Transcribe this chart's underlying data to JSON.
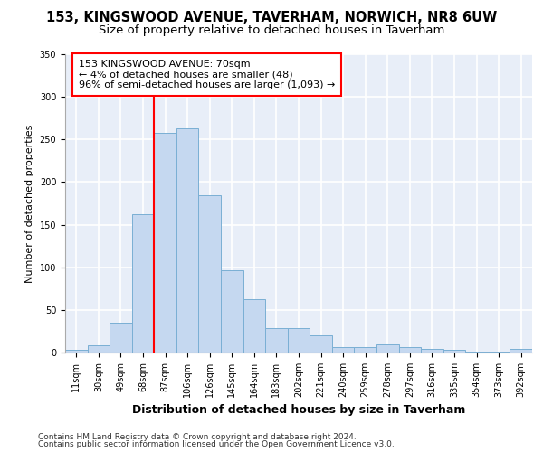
{
  "title1": "153, KINGSWOOD AVENUE, TAVERHAM, NORWICH, NR8 6UW",
  "title2": "Size of property relative to detached houses in Taverham",
  "xlabel": "Distribution of detached houses by size in Taverham",
  "ylabel": "Number of detached properties",
  "bin_labels": [
    "11sqm",
    "30sqm",
    "49sqm",
    "68sqm",
    "87sqm",
    "106sqm",
    "126sqm",
    "145sqm",
    "164sqm",
    "183sqm",
    "202sqm",
    "221sqm",
    "240sqm",
    "259sqm",
    "278sqm",
    "297sqm",
    "316sqm",
    "335sqm",
    "354sqm",
    "373sqm",
    "392sqm"
  ],
  "bar_values": [
    3,
    8,
    35,
    162,
    258,
    263,
    185,
    96,
    63,
    29,
    29,
    20,
    6,
    6,
    10,
    6,
    4,
    3,
    1,
    1,
    4
  ],
  "bar_color": "#c5d8f0",
  "bar_edge_color": "#7aafd4",
  "red_line_x": 3.5,
  "annotation_title": "153 KINGSWOOD AVENUE: 70sqm",
  "annotation_line1": "← 4% of detached houses are smaller (48)",
  "annotation_line2": "96% of semi-detached houses are larger (1,093) →",
  "ylim": [
    0,
    350
  ],
  "yticks": [
    0,
    50,
    100,
    150,
    200,
    250,
    300,
    350
  ],
  "footnote1": "Contains HM Land Registry data © Crown copyright and database right 2024.",
  "footnote2": "Contains public sector information licensed under the Open Government Licence v3.0.",
  "bg_color": "#e8eef8",
  "grid_color": "#ffffff",
  "title1_fontsize": 10.5,
  "title2_fontsize": 9.5,
  "ylabel_fontsize": 8,
  "xlabel_fontsize": 9,
  "tick_fontsize": 7,
  "footnote_fontsize": 6.5,
  "annot_fontsize": 8
}
